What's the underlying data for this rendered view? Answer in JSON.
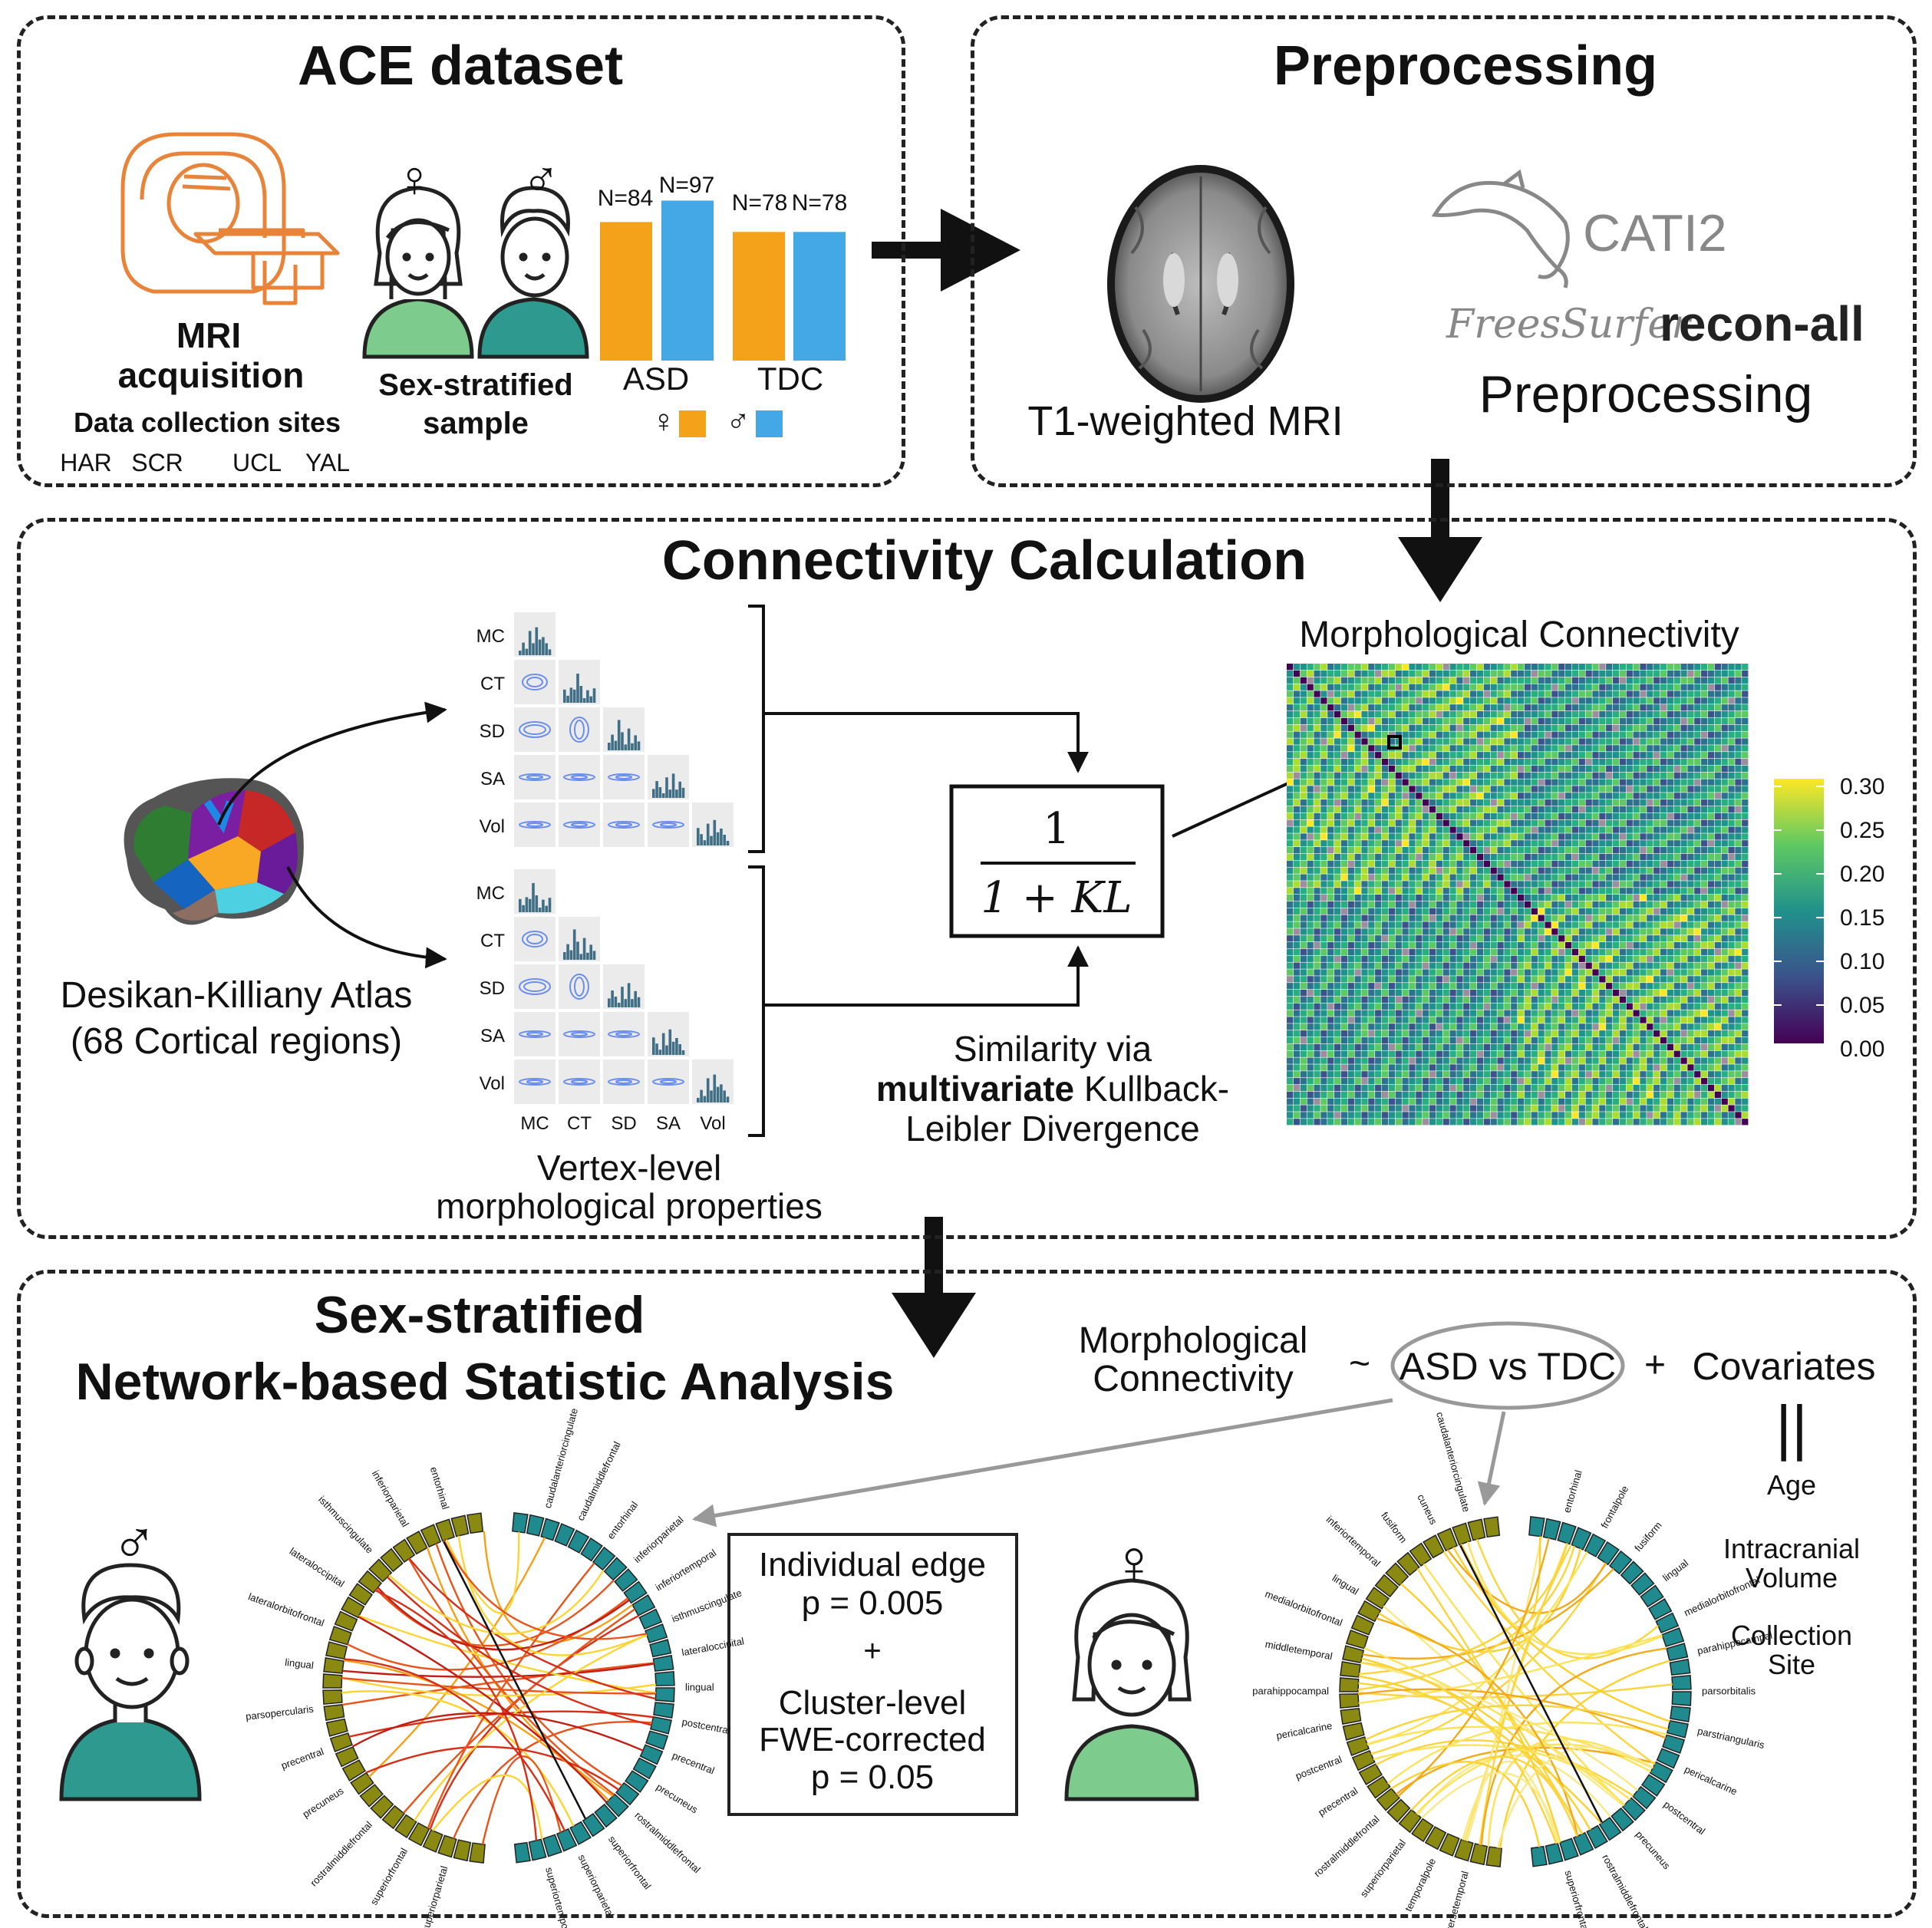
{
  "panels": {
    "ace": {
      "title": "ACE dataset",
      "mri_line1": "MRI",
      "mri_line2": "acquisition",
      "sites_label": "Data collection sites",
      "sites": [
        "HAR",
        "SCR",
        "UCL",
        "YAL"
      ],
      "sample_line1": "Sex-stratified",
      "sample_line2": "sample",
      "female_symbol": "♀",
      "male_symbol": "♂",
      "bars": [
        {
          "label": "N=84",
          "value": 84,
          "group": "ASD",
          "sex": "female"
        },
        {
          "label": "N=97",
          "value": 97,
          "group": "ASD",
          "sex": "male"
        },
        {
          "label": "N=78",
          "value": 78,
          "group": "TDC",
          "sex": "female"
        },
        {
          "label": "N=78",
          "value": 78,
          "group": "TDC",
          "sex": "male"
        }
      ],
      "groups": [
        "ASD",
        "TDC"
      ],
      "colors": {
        "female": "#F5A21B",
        "male": "#45A8E6"
      }
    },
    "pre": {
      "title": "Preprocessing",
      "t1_label": "T1-weighted MRI",
      "cati_label": "CATI2",
      "freesurfer_label": "FreesSurfer",
      "reconall_label": "recon-all",
      "preproc_label": "Preprocessing"
    },
    "conn": {
      "title": "Connectivity Calculation",
      "atlas_line1": "Desikan-Killiany Atlas",
      "atlas_line2": "(68 Cortical regions)",
      "row_labels": [
        "MC",
        "CT",
        "SD",
        "SA",
        "Vol"
      ],
      "col_labels": [
        "MC",
        "CT",
        "SD",
        "SA",
        "Vol"
      ],
      "vertex_line1": "Vertex-level",
      "vertex_line2": "morphological properties",
      "formula_num": "1",
      "formula_den": "1 + KL",
      "sim_line1": "Similarity via",
      "sim_bold": "multivariate",
      "sim_line2_rest": " Kullback-",
      "sim_line3": "Leibler Divergence",
      "matrix_title": "Morphological Connectivity",
      "colorbar_ticks": [
        "0.30",
        "0.25",
        "0.20",
        "0.15",
        "0.10",
        "0.05",
        "0.00"
      ]
    },
    "nbs": {
      "title_line1": "Sex-stratified",
      "title_line2": "Network-based Statistic Analysis",
      "eq_lhs_line1": "Morphological",
      "eq_lhs_line2": "Connectivity",
      "eq_tilde": "~",
      "eq_group": "ASD vs TDC",
      "eq_plus": "+",
      "eq_cov": "Covariates",
      "eq_equals": "||",
      "covariates": [
        "Age",
        "Intracranial Volume",
        "Collection Site"
      ],
      "stats_line1": "Individual edge",
      "stats_line2": "p = 0.005",
      "stats_plus": "+",
      "stats_line3": "Cluster-level",
      "stats_line4": "FWE-corrected",
      "stats_line5": "p = 0.05",
      "male_symbol": "♂",
      "female_symbol": "♀",
      "male_left_labels": [
        "entorhinal",
        "inferiorparietal",
        "isthmuscingulate",
        "lateraloccipital",
        "lateralorbitofrontal",
        "lingual",
        "parsopercularis",
        "precentral",
        "precuneus",
        "rostralmiddlefrontal",
        "superiorfrontal",
        "superiorparietal"
      ],
      "male_right_labels": [
        "caudalanteriorcingulate",
        "caudalmiddlefrontal",
        "entorhinal",
        "inferiorparietal",
        "inferiortemporal",
        "isthmuscingulate",
        "lateraloccipital",
        "lingual",
        "postcentral",
        "precentral",
        "precuneus",
        "rostralmiddlefrontal",
        "superiorfrontal",
        "superiorparietal",
        "superiortemporal"
      ],
      "female_left_labels": [
        "caudalanteriorcingulate",
        "cuneus",
        "fusiform",
        "inferiortemporal",
        "lingual",
        "medialorbitofrontal",
        "middletemporal",
        "parahippocampal",
        "pericalcarine",
        "postcentral",
        "precentral",
        "rostralmiddlefrontal",
        "superiorparietal",
        "temporalpole",
        "transversetemporal"
      ],
      "female_right_labels": [
        "entorhinal",
        "frontalpole",
        "fusiform",
        "lingual",
        "medialorbitofrontal",
        "parahippocampal",
        "parsorbitalis",
        "parstriangularis",
        "pericalcarine",
        "postcentral",
        "precuneus",
        "rostralmiddlefrontal",
        "superiorfrontal"
      ]
    }
  }
}
